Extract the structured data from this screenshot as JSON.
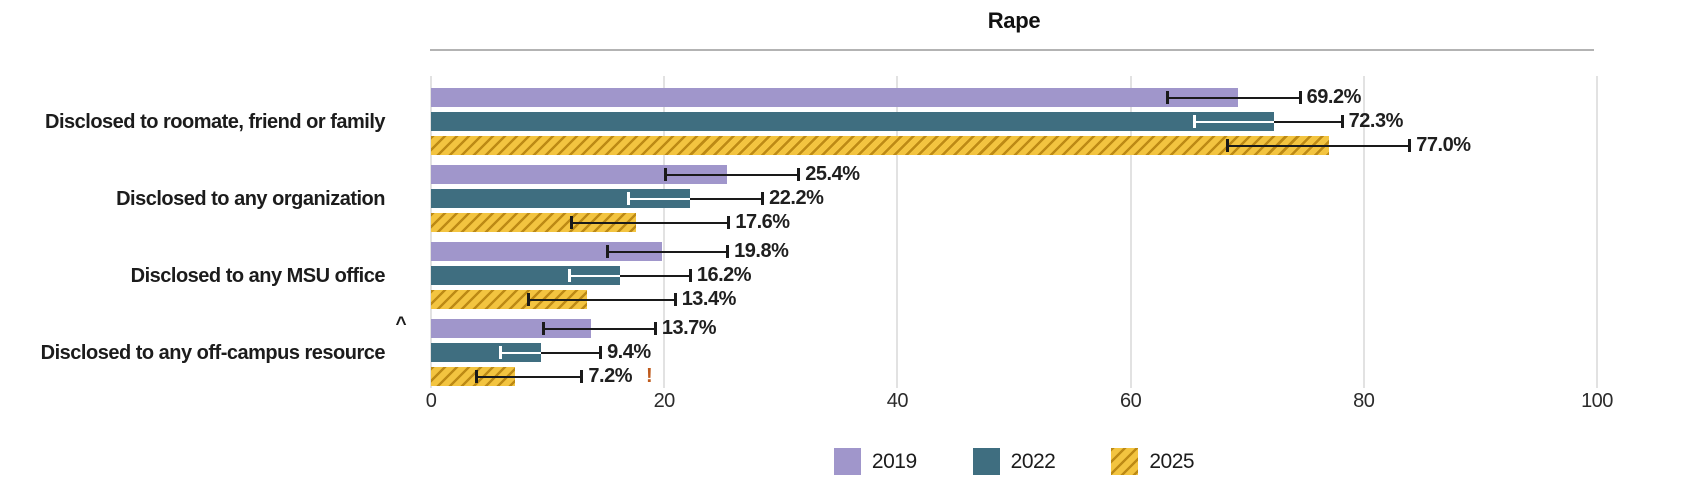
{
  "title": "Rape",
  "chart_data": {
    "type": "bar",
    "orientation": "horizontal",
    "title": "Rape",
    "xlim": [
      0,
      100
    ],
    "x_ticks": [
      0,
      20,
      40,
      60,
      80,
      100
    ],
    "grid": true,
    "legend_position": "bottom",
    "categories": [
      "Disclosed to roomate, friend or family",
      "Disclosed to any organization",
      "Disclosed to any MSU office",
      "Disclosed to any off-campus resource"
    ],
    "category_annotations": [
      "",
      "",
      "",
      "^"
    ],
    "series": [
      {
        "name": "2019",
        "color": "#a096cb",
        "hatch": false,
        "whisker_inner_color": "#1a1a1a",
        "values": [
          69.2,
          25.4,
          19.8,
          13.7
        ],
        "ci_low": [
          63.1,
          20.1,
          15.1,
          9.6
        ],
        "ci_high": [
          74.5,
          31.5,
          25.4,
          19.2
        ],
        "labels": [
          "69.2%",
          "25.4%",
          "19.8%",
          "13.7%"
        ],
        "flags": [
          "",
          "",
          "",
          ""
        ]
      },
      {
        "name": "2022",
        "color": "#3f6e80",
        "hatch": false,
        "whisker_inner_color": "#ffffff",
        "values": [
          72.3,
          22.2,
          16.2,
          9.4
        ],
        "ci_low": [
          65.4,
          16.9,
          11.8,
          5.9
        ],
        "ci_high": [
          78.1,
          28.4,
          22.2,
          14.5
        ],
        "labels": [
          "72.3%",
          "22.2%",
          "16.2%",
          "9.4%"
        ],
        "flags": [
          "",
          "",
          "",
          ""
        ]
      },
      {
        "name": "2025",
        "color": "#f3c440",
        "hatch": true,
        "hatch_color": "#bd8a15",
        "whisker_inner_color": "#1a1a1a",
        "values": [
          77.0,
          17.6,
          13.4,
          7.2
        ],
        "ci_low": [
          68.3,
          12.0,
          8.3,
          3.9
        ],
        "ci_high": [
          83.9,
          25.5,
          20.9,
          12.9
        ],
        "labels": [
          "77.0%",
          "17.6%",
          "13.4%",
          "7.2%"
        ],
        "flags": [
          "",
          "",
          "",
          "!"
        ]
      }
    ],
    "flag_color": "#bf5b1d",
    "whisker_color": "#1a1a1a",
    "legend": [
      "2019",
      "2022",
      "2025"
    ]
  }
}
